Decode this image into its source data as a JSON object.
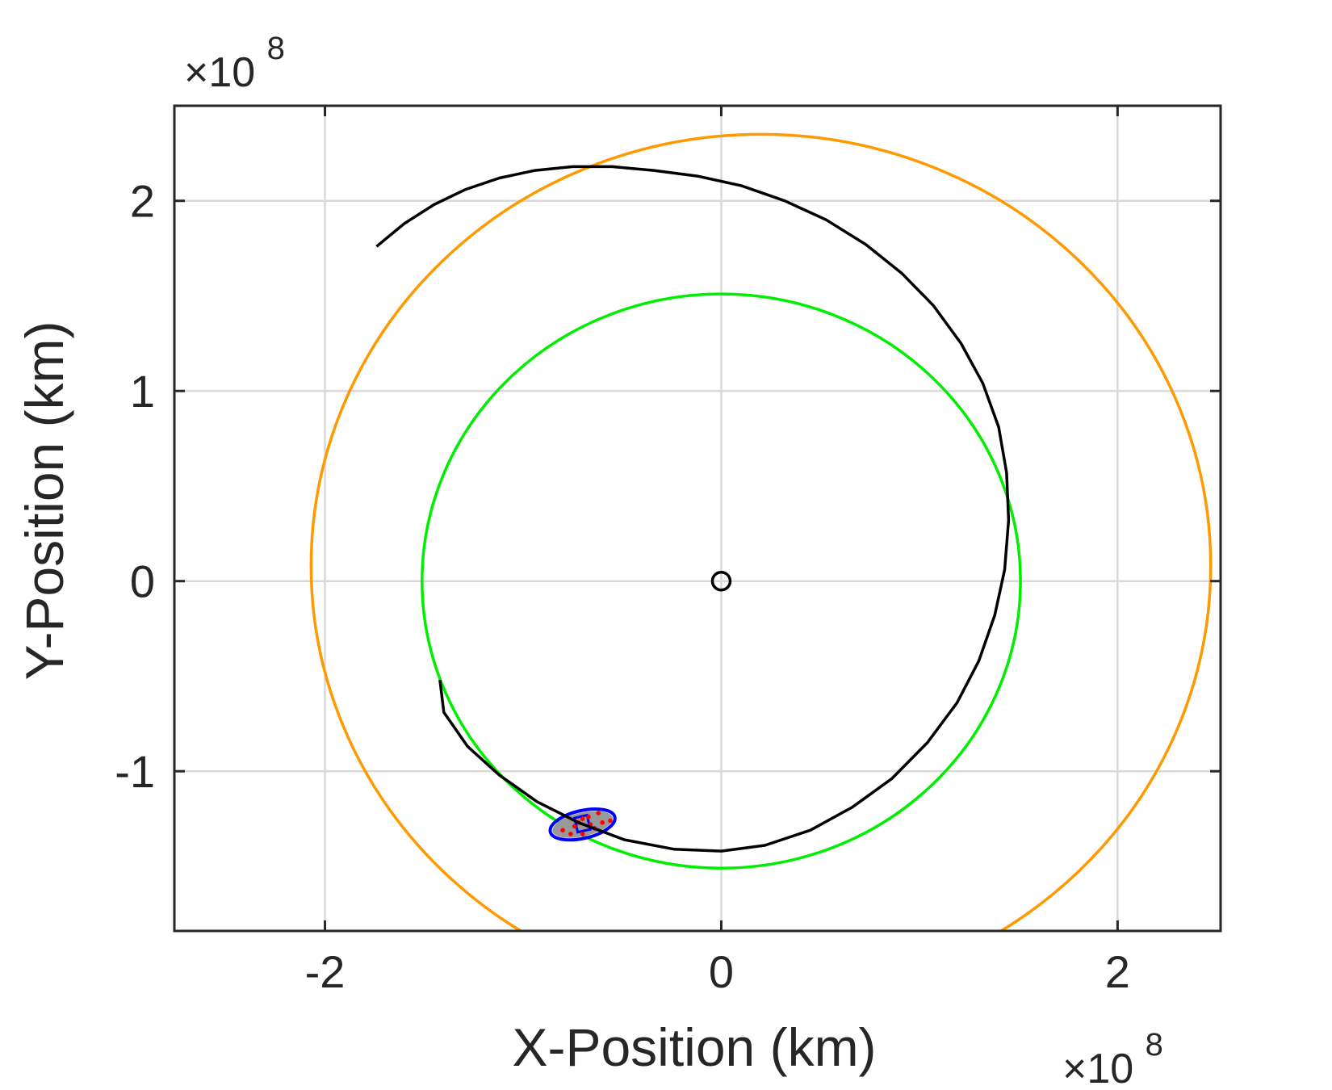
{
  "chart_data": {
    "type": "line",
    "title": "",
    "xlabel": "X-Position (km)",
    "ylabel": "Y-Position (km)",
    "x_exponent": {
      "base": "×10",
      "power": "8"
    },
    "y_exponent": {
      "base": "×10",
      "power": "8"
    },
    "xlim": [
      -2.76,
      2.52
    ],
    "ylim": [
      -1.84,
      2.5
    ],
    "xticks": [
      -2,
      0,
      2
    ],
    "xtick_labels": [
      "-2",
      "0",
      "2"
    ],
    "yticks": [
      -1,
      0,
      1,
      2
    ],
    "ytick_labels": [
      "-1",
      "0",
      "1",
      "2"
    ],
    "grid": true,
    "colors": {
      "outer_orbit": "#ff9900",
      "inner_orbit": "#00ee00",
      "trajectory": "#000000",
      "center_marker": "#000000",
      "ellipse": "#0000ff",
      "cloud": "#999999",
      "samples": "#ff0000"
    },
    "series": [
      {
        "key": "outer_orbit",
        "shape": "circle",
        "center": [
          0.2,
          0.08
        ],
        "radius": 2.27
      },
      {
        "key": "inner_orbit",
        "shape": "circle",
        "center": [
          0.0,
          0.0
        ],
        "radius": 1.51
      },
      {
        "key": "trajectory",
        "shape": "polyline",
        "points": [
          [
            -1.74,
            1.76
          ],
          [
            -1.6,
            1.88
          ],
          [
            -1.45,
            1.98
          ],
          [
            -1.29,
            2.06
          ],
          [
            -1.12,
            2.12
          ],
          [
            -0.94,
            2.16
          ],
          [
            -0.75,
            2.18
          ],
          [
            -0.55,
            2.18
          ],
          [
            -0.34,
            2.16
          ],
          [
            -0.12,
            2.13
          ],
          [
            0.1,
            2.08
          ],
          [
            0.32,
            2.0
          ],
          [
            0.53,
            1.9
          ],
          [
            0.73,
            1.77
          ],
          [
            0.91,
            1.62
          ],
          [
            1.07,
            1.45
          ],
          [
            1.21,
            1.25
          ],
          [
            1.32,
            1.04
          ],
          [
            1.4,
            0.81
          ],
          [
            1.44,
            0.57
          ],
          [
            1.45,
            0.32
          ],
          [
            1.43,
            0.06
          ],
          [
            1.38,
            -0.18
          ],
          [
            1.3,
            -0.42
          ],
          [
            1.19,
            -0.64
          ],
          [
            1.04,
            -0.85
          ],
          [
            0.86,
            -1.04
          ],
          [
            0.66,
            -1.19
          ],
          [
            0.45,
            -1.31
          ],
          [
            0.22,
            -1.39
          ],
          [
            0.0,
            -1.42
          ],
          [
            -0.24,
            -1.41
          ],
          [
            -0.49,
            -1.36
          ],
          [
            -0.72,
            -1.27
          ],
          [
            -0.93,
            -1.16
          ],
          [
            -1.12,
            -1.02
          ],
          [
            -1.28,
            -0.87
          ],
          [
            -1.4,
            -0.69
          ],
          [
            -1.42,
            -0.52
          ]
        ]
      },
      {
        "key": "center_marker",
        "shape": "marker",
        "point": [
          0.0,
          0.0
        ]
      },
      {
        "key": "ellipse",
        "shape": "ellipse",
        "center": [
          -0.7,
          -1.28
        ],
        "rx": 0.167,
        "ry": 0.073,
        "angle_deg": -13
      },
      {
        "key": "samples",
        "shape": "scatter",
        "points": [
          [
            -0.8,
            -1.31
          ],
          [
            -0.76,
            -1.33
          ],
          [
            -0.72,
            -1.27
          ],
          [
            -0.7,
            -1.25
          ],
          [
            -0.67,
            -1.24
          ],
          [
            -0.64,
            -1.3
          ],
          [
            -0.6,
            -1.27
          ],
          [
            -0.56,
            -1.26
          ],
          [
            -0.7,
            -1.33
          ],
          [
            -0.74,
            -1.29
          ],
          [
            -0.66,
            -1.28
          ],
          [
            -0.62,
            -1.22
          ]
        ]
      }
    ]
  }
}
